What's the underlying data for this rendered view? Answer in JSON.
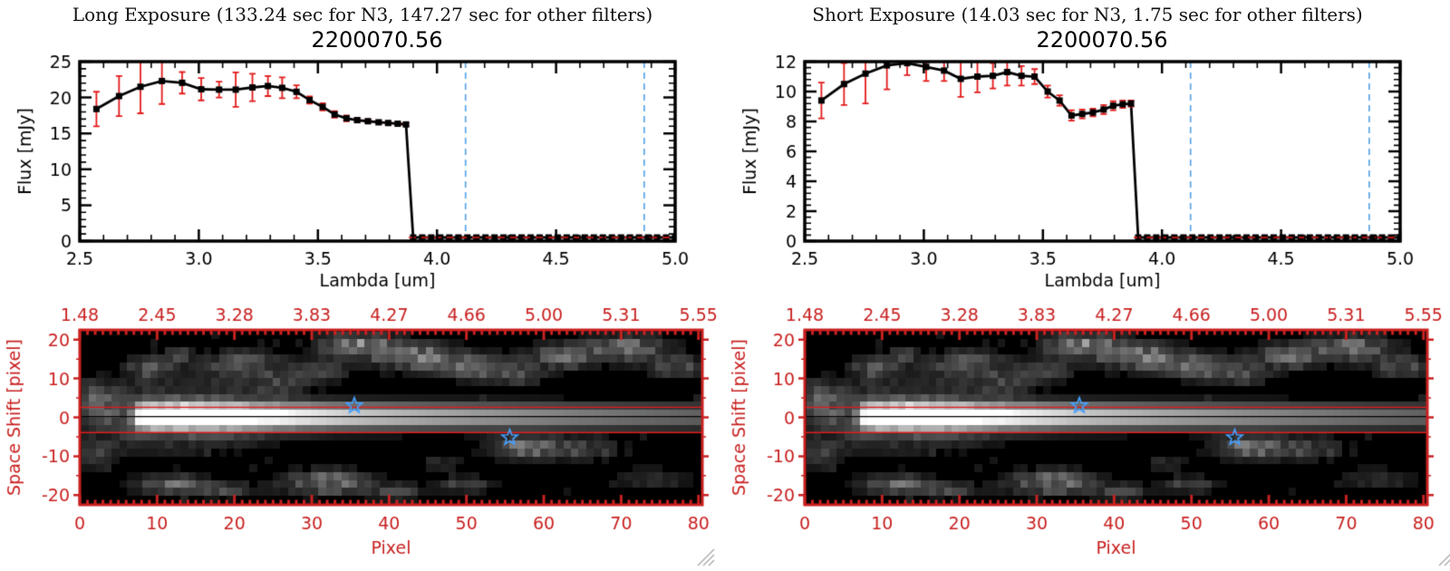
{
  "colors": {
    "background": "#ffffff",
    "axis_black": "#000000",
    "axis_red": "#c92121",
    "error_red": "#e31b1b",
    "dash_blue": "#5aa6e8",
    "star_blue": "#46a0ff",
    "grip_gray": "#bdbdbd"
  },
  "windows": [
    {
      "name": "long-exposure",
      "title": "Long Exposure (133.24 sec for N3, 147.27 sec for other filters)",
      "subtitle": "2200070.56"
    },
    {
      "name": "short-exposure",
      "title": "Short Exposure (14.03 sec for N3, 1.75 sec for other filters)",
      "subtitle": "2200070.56"
    }
  ],
  "chart_data": [
    {
      "type": "line",
      "window": "long-exposure",
      "title": "2200070.56",
      "xlabel": "Lambda [um]",
      "ylabel": "Flux [mJy]",
      "xlim": [
        2.5,
        5.0
      ],
      "ylim": [
        0,
        25
      ],
      "x_ticks": [
        2.5,
        3.0,
        3.5,
        4.0,
        4.5,
        5.0
      ],
      "x_tick_labels": [
        "2.5",
        "3.0",
        "3.5",
        "4.0",
        "4.5",
        "5.0"
      ],
      "x_minor_step": 0.1,
      "y_ticks": [
        0,
        5,
        10,
        15,
        20,
        25
      ],
      "y_tick_labels": [
        "0",
        "5",
        "10",
        "15",
        "20",
        "25"
      ],
      "y_minor_step": 1,
      "series": [
        {
          "name": "flux-spectrum",
          "marker": "square",
          "points": [
            [
              2.57,
              18.4,
              2.4
            ],
            [
              2.665,
              20.2,
              2.8
            ],
            [
              2.755,
              21.5,
              3.7
            ],
            [
              2.845,
              22.3,
              3.2
            ],
            [
              2.93,
              22.05,
              1.5
            ],
            [
              3.01,
              21.15,
              1.55
            ],
            [
              3.085,
              21.1,
              1.1
            ],
            [
              3.155,
              21.1,
              2.4
            ],
            [
              3.225,
              21.4,
              1.9
            ],
            [
              3.29,
              21.6,
              1.4
            ],
            [
              3.35,
              21.35,
              1.45
            ],
            [
              3.41,
              20.8,
              0.9
            ],
            [
              3.465,
              19.65,
              0.5
            ],
            [
              3.52,
              18.7,
              0.5
            ],
            [
              3.57,
              17.65,
              0.45
            ],
            [
              3.62,
              17.1,
              0.4
            ],
            [
              3.665,
              16.85,
              0.3
            ],
            [
              3.71,
              16.7,
              0.25
            ],
            [
              3.755,
              16.55,
              0.25
            ],
            [
              3.795,
              16.45,
              0.2
            ],
            [
              3.835,
              16.35,
              0.2
            ],
            [
              3.87,
              16.25,
              0.2
            ]
          ]
        }
      ],
      "zero_tail": {
        "x_start": 3.9,
        "x_end": 5.0,
        "n": 30,
        "y": 0
      },
      "zero_dash_line_y": 0,
      "vlines": [
        4.12,
        4.87
      ]
    },
    {
      "type": "line",
      "window": "short-exposure",
      "title": "2200070.56",
      "xlabel": "Lambda [um]",
      "ylabel": "Flux [mJy]",
      "xlim": [
        2.5,
        5.0
      ],
      "ylim": [
        0,
        12
      ],
      "x_ticks": [
        2.5,
        3.0,
        3.5,
        4.0,
        4.5,
        5.0
      ],
      "x_tick_labels": [
        "2.5",
        "3.0",
        "3.5",
        "4.0",
        "4.5",
        "5.0"
      ],
      "x_minor_step": 0.1,
      "y_ticks": [
        0,
        2,
        4,
        6,
        8,
        10,
        12
      ],
      "y_tick_labels": [
        "0",
        "2",
        "4",
        "6",
        "8",
        "10",
        "12"
      ],
      "y_minor_step": 0.4,
      "series": [
        {
          "name": "flux-spectrum",
          "marker": "square",
          "points": [
            [
              2.57,
              9.4,
              1.2
            ],
            [
              2.665,
              10.5,
              1.4
            ],
            [
              2.755,
              11.2,
              2.0
            ],
            [
              2.845,
              11.75,
              1.6
            ],
            [
              2.93,
              11.9,
              0.8
            ],
            [
              3.01,
              11.65,
              0.95
            ],
            [
              3.085,
              11.4,
              0.7
            ],
            [
              3.155,
              10.85,
              1.2
            ],
            [
              3.225,
              11.0,
              1.05
            ],
            [
              3.29,
              11.05,
              0.85
            ],
            [
              3.35,
              11.3,
              0.9
            ],
            [
              3.41,
              11.05,
              0.65
            ],
            [
              3.465,
              11.0,
              0.5
            ],
            [
              3.52,
              10.0,
              0.4
            ],
            [
              3.57,
              9.4,
              0.35
            ],
            [
              3.62,
              8.4,
              0.35
            ],
            [
              3.665,
              8.5,
              0.3
            ],
            [
              3.71,
              8.6,
              0.25
            ],
            [
              3.755,
              8.8,
              0.3
            ],
            [
              3.795,
              9.05,
              0.3
            ],
            [
              3.835,
              9.15,
              0.25
            ],
            [
              3.87,
              9.2,
              0.2
            ]
          ]
        }
      ],
      "zero_tail": {
        "x_start": 3.9,
        "x_end": 5.0,
        "n": 30,
        "y": 0
      },
      "zero_dash_line_y": 0,
      "vlines": [
        4.12,
        4.87
      ]
    },
    {
      "type": "heatmap",
      "window": "both",
      "xlabel": "Pixel",
      "ylabel": "Space Shift [pixel]",
      "xlim": [
        0,
        80.5
      ],
      "ylim": [
        -22.5,
        22.5
      ],
      "x_ticks": [
        0,
        10,
        20,
        30,
        40,
        50,
        60,
        70,
        80
      ],
      "x_tick_labels": [
        "0",
        "10",
        "20",
        "30",
        "40",
        "50",
        "60",
        "70",
        "80"
      ],
      "top_tick_positions": [
        0,
        10,
        20,
        30,
        40,
        50,
        60,
        70,
        80
      ],
      "top_tick_labels": [
        "1.48",
        "2.45",
        "3.28",
        "3.83",
        "4.27",
        "4.66",
        "5.00",
        "5.31",
        "5.55"
      ],
      "y_ticks": [
        -20,
        -10,
        0,
        10,
        20
      ],
      "y_tick_labels": [
        "-20",
        "-10",
        "0",
        "10",
        "20"
      ],
      "aperture_lines_y": [
        2.6,
        -3.9
      ],
      "trace_center_y": 0.2,
      "stars": [
        [
          35.5,
          3.0
        ],
        [
          55.6,
          -5.2
        ]
      ],
      "grid": {
        "cols": 81,
        "rows": 22
      },
      "band": {
        "y_center": 0.2,
        "sigma": 2.3,
        "x_start": 5.5,
        "x_full": 8.5,
        "plateau_end": 16,
        "decay": 55,
        "gain": 1.15,
        "halo": {
          "x": 13,
          "sx": 9,
          "sy": 5.5,
          "a": 0.28
        }
      },
      "blobs": [
        {
          "x": 1.5,
          "y": 4.0,
          "sx": 2.2,
          "sy": 3.5,
          "a": 0.26
        },
        {
          "x": 2.0,
          "y": -10.0,
          "sx": 2.0,
          "sy": 2.5,
          "a": 0.16
        },
        {
          "x": 9.0,
          "y": 13.0,
          "sx": 2.2,
          "sy": 2.2,
          "a": 0.26
        },
        {
          "x": 13.0,
          "y": 16.5,
          "sx": 1.5,
          "sy": 1.5,
          "a": 0.18
        },
        {
          "x": 21.0,
          "y": 13.5,
          "sx": 3.5,
          "sy": 2.8,
          "a": 0.28
        },
        {
          "x": 26.0,
          "y": 8.5,
          "sx": 2.5,
          "sy": 1.8,
          "a": 0.16
        },
        {
          "x": 31.0,
          "y": 12.0,
          "sx": 3.0,
          "sy": 2.0,
          "a": 0.2
        },
        {
          "x": 36.0,
          "y": 19.0,
          "sx": 3.5,
          "sy": 2.2,
          "a": 0.42
        },
        {
          "x": 44.0,
          "y": 16.0,
          "sx": 4.0,
          "sy": 2.4,
          "a": 0.38
        },
        {
          "x": 52.0,
          "y": 13.0,
          "sx": 3.5,
          "sy": 2.2,
          "a": 0.3
        },
        {
          "x": 57.0,
          "y": 10.5,
          "sx": 2.5,
          "sy": 1.8,
          "a": 0.18
        },
        {
          "x": 63.0,
          "y": 16.0,
          "sx": 3.2,
          "sy": 2.2,
          "a": 0.34
        },
        {
          "x": 71.5,
          "y": 18.0,
          "sx": 3.5,
          "sy": 2.4,
          "a": 0.38
        },
        {
          "x": 78.0,
          "y": 13.0,
          "sx": 2.5,
          "sy": 2.0,
          "a": 0.24
        },
        {
          "x": 58.0,
          "y": -8.0,
          "sx": 3.2,
          "sy": 2.0,
          "a": 0.38
        },
        {
          "x": 66.0,
          "y": -8.5,
          "sx": 3.5,
          "sy": 1.8,
          "a": 0.2
        },
        {
          "x": 12.0,
          "y": -17.5,
          "sx": 3.2,
          "sy": 1.8,
          "a": 0.34
        },
        {
          "x": 19.0,
          "y": -19.0,
          "sx": 2.5,
          "sy": 1.5,
          "a": 0.2
        },
        {
          "x": 32.0,
          "y": -17.0,
          "sx": 4.0,
          "sy": 2.2,
          "a": 0.38
        },
        {
          "x": 41.0,
          "y": -19.5,
          "sx": 2.5,
          "sy": 1.5,
          "a": 0.2
        },
        {
          "x": 50.0,
          "y": -17.5,
          "sx": 2.8,
          "sy": 1.5,
          "a": 0.22
        },
        {
          "x": 47.0,
          "y": -12.0,
          "sx": 2.0,
          "sy": 1.3,
          "a": 0.14
        },
        {
          "x": 75.0,
          "y": -16.0,
          "sx": 3.5,
          "sy": 2.0,
          "a": 0.14
        }
      ]
    }
  ]
}
